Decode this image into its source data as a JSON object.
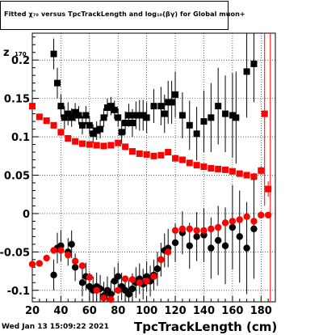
{
  "title": "Fitted  χ₇₀  versus TpcTrackLength and log₁₀(βγ) for Global muon+",
  "datestamp": "Wed Jan 13 15:09:22 2021",
  "colors": {
    "black_series": "#000000",
    "red_series": "#ff0000",
    "grid": "#000000",
    "frame": "#000000"
  },
  "chart_data": {
    "type": "scatter",
    "title": "Fitted  χ₇₀  versus TpcTrackLength and log₁₀(βγ) for Global muon+",
    "xlabel": "TpcTrackLength (cm)",
    "ylabel": "z",
    "ylabel_sub": "170",
    "xlim": [
      20,
      190
    ],
    "ylim": [
      -0.115,
      0.235
    ],
    "x_ticks": [
      20,
      40,
      60,
      80,
      100,
      120,
      140,
      160,
      180
    ],
    "y_ticks": [
      -0.1,
      -0.05,
      0,
      0.05,
      0.1,
      0.15,
      0.2
    ],
    "y_tick_labels": [
      "-0.1",
      "-0.05",
      "0",
      "0.05",
      "0.1",
      "0.15",
      "0.2"
    ],
    "grid": true,
    "series": [
      {
        "color": "#000000",
        "marker": "square",
        "points": [
          {
            "x": 35,
            "y": 0.208,
            "err": 0.02
          },
          {
            "x": 37.5,
            "y": 0.17,
            "err": 0.02
          },
          {
            "x": 40,
            "y": 0.14,
            "err": 0.015
          },
          {
            "x": 42.5,
            "y": 0.125,
            "err": 0.015
          },
          {
            "x": 45,
            "y": 0.13,
            "err": 0.015
          },
          {
            "x": 47.5,
            "y": 0.125,
            "err": 0.012
          },
          {
            "x": 50,
            "y": 0.132,
            "err": 0.012
          },
          {
            "x": 52.5,
            "y": 0.128,
            "err": 0.012
          },
          {
            "x": 55,
            "y": 0.115,
            "err": 0.012
          },
          {
            "x": 57.5,
            "y": 0.128,
            "err": 0.012
          },
          {
            "x": 60,
            "y": 0.115,
            "err": 0.012
          },
          {
            "x": 62.5,
            "y": 0.104,
            "err": 0.012
          },
          {
            "x": 65,
            "y": 0.108,
            "err": 0.012
          },
          {
            "x": 67.5,
            "y": 0.11,
            "err": 0.012
          },
          {
            "x": 70,
            "y": 0.125,
            "err": 0.012
          },
          {
            "x": 72.5,
            "y": 0.138,
            "err": 0.012
          },
          {
            "x": 75,
            "y": 0.14,
            "err": 0.012
          },
          {
            "x": 77.5,
            "y": 0.135,
            "err": 0.012
          },
          {
            "x": 80,
            "y": 0.125,
            "err": 0.012
          },
          {
            "x": 82.5,
            "y": 0.106,
            "err": 0.015
          },
          {
            "x": 85,
            "y": 0.118,
            "err": 0.015
          },
          {
            "x": 87.5,
            "y": 0.128,
            "err": 0.015
          },
          {
            "x": 90,
            "y": 0.118,
            "err": 0.018
          },
          {
            "x": 92.5,
            "y": 0.128,
            "err": 0.018
          },
          {
            "x": 95,
            "y": 0.128,
            "err": 0.02
          },
          {
            "x": 97.5,
            "y": 0.128,
            "err": 0.02
          },
          {
            "x": 100,
            "y": 0.125,
            "err": 0.02
          },
          {
            "x": 105,
            "y": 0.14,
            "err": 0.022
          },
          {
            "x": 110,
            "y": 0.14,
            "err": 0.025
          },
          {
            "x": 112.5,
            "y": 0.13,
            "err": 0.025
          },
          {
            "x": 115,
            "y": 0.145,
            "err": 0.028
          },
          {
            "x": 117.5,
            "y": 0.145,
            "err": 0.028
          },
          {
            "x": 120,
            "y": 0.155,
            "err": 0.03
          },
          {
            "x": 125,
            "y": 0.128,
            "err": 0.03
          },
          {
            "x": 130,
            "y": 0.115,
            "err": 0.032
          },
          {
            "x": 135,
            "y": 0.104,
            "err": 0.035
          },
          {
            "x": 140,
            "y": 0.12,
            "err": 0.04
          },
          {
            "x": 145,
            "y": 0.125,
            "err": 0.045
          },
          {
            "x": 150,
            "y": 0.14,
            "err": 0.05
          },
          {
            "x": 155,
            "y": 0.13,
            "err": 0.05
          },
          {
            "x": 160,
            "y": 0.128,
            "err": 0.055
          },
          {
            "x": 162.5,
            "y": 0.125,
            "err": 0.06
          },
          {
            "x": 170,
            "y": 0.185,
            "err": 0.06
          },
          {
            "x": 175,
            "y": 0.195,
            "err": 0.05
          }
        ]
      },
      {
        "color": "#ff0000",
        "marker": "square",
        "points": [
          {
            "x": 20,
            "y": 0.14,
            "err": 0.004
          },
          {
            "x": 25,
            "y": 0.126,
            "err": 0.004
          },
          {
            "x": 30,
            "y": 0.121,
            "err": 0.004
          },
          {
            "x": 35,
            "y": 0.115,
            "err": 0.004
          },
          {
            "x": 40,
            "y": 0.106,
            "err": 0.003
          },
          {
            "x": 45,
            "y": 0.098,
            "err": 0.003
          },
          {
            "x": 50,
            "y": 0.094,
            "err": 0.003
          },
          {
            "x": 55,
            "y": 0.091,
            "err": 0.003
          },
          {
            "x": 60,
            "y": 0.09,
            "err": 0.003
          },
          {
            "x": 65,
            "y": 0.089,
            "err": 0.003
          },
          {
            "x": 70,
            "y": 0.088,
            "err": 0.003
          },
          {
            "x": 75,
            "y": 0.089,
            "err": 0.003
          },
          {
            "x": 80,
            "y": 0.092,
            "err": 0.003
          },
          {
            "x": 85,
            "y": 0.087,
            "err": 0.003
          },
          {
            "x": 90,
            "y": 0.081,
            "err": 0.003
          },
          {
            "x": 95,
            "y": 0.078,
            "err": 0.003
          },
          {
            "x": 100,
            "y": 0.077,
            "err": 0.003
          },
          {
            "x": 105,
            "y": 0.075,
            "err": 0.003
          },
          {
            "x": 110,
            "y": 0.076,
            "err": 0.003
          },
          {
            "x": 115,
            "y": 0.08,
            "err": 0.003
          },
          {
            "x": 120,
            "y": 0.072,
            "err": 0.003
          },
          {
            "x": 125,
            "y": 0.07,
            "err": 0.003
          },
          {
            "x": 130,
            "y": 0.066,
            "err": 0.003
          },
          {
            "x": 135,
            "y": 0.063,
            "err": 0.003
          },
          {
            "x": 140,
            "y": 0.061,
            "err": 0.003
          },
          {
            "x": 145,
            "y": 0.059,
            "err": 0.003
          },
          {
            "x": 150,
            "y": 0.058,
            "err": 0.003
          },
          {
            "x": 155,
            "y": 0.057,
            "err": 0.003
          },
          {
            "x": 160,
            "y": 0.055,
            "err": 0.003
          },
          {
            "x": 165,
            "y": 0.052,
            "err": 0.004
          },
          {
            "x": 170,
            "y": 0.05,
            "err": 0.004
          },
          {
            "x": 175,
            "y": 0.048,
            "err": 0.005
          },
          {
            "x": 180,
            "y": 0.056,
            "err": 0.006
          },
          {
            "x": 182.5,
            "y": 0.13,
            "err": 0.12
          },
          {
            "x": 185,
            "y": 0.032,
            "err": 0.01
          }
        ]
      },
      {
        "color": "#000000",
        "marker": "circle",
        "points": [
          {
            "x": 35,
            "y": -0.08,
            "err": 0.02
          },
          {
            "x": 37.5,
            "y": -0.045,
            "err": 0.02
          },
          {
            "x": 40,
            "y": -0.042,
            "err": 0.02
          },
          {
            "x": 45,
            "y": -0.05,
            "err": 0.018
          },
          {
            "x": 47.5,
            "y": -0.04,
            "err": 0.018
          },
          {
            "x": 50,
            "y": -0.07,
            "err": 0.018
          },
          {
            "x": 55,
            "y": -0.09,
            "err": 0.018
          },
          {
            "x": 57.5,
            "y": -0.082,
            "err": 0.018
          },
          {
            "x": 60,
            "y": -0.095,
            "err": 0.018
          },
          {
            "x": 62.5,
            "y": -0.1,
            "err": 0.018
          },
          {
            "x": 65,
            "y": -0.095,
            "err": 0.018
          },
          {
            "x": 67.5,
            "y": -0.098,
            "err": 0.018
          },
          {
            "x": 70,
            "y": -0.107,
            "err": 0.018
          },
          {
            "x": 72.5,
            "y": -0.1,
            "err": 0.018
          },
          {
            "x": 75,
            "y": -0.105,
            "err": 0.018
          },
          {
            "x": 77.5,
            "y": -0.088,
            "err": 0.018
          },
          {
            "x": 80,
            "y": -0.082,
            "err": 0.018
          },
          {
            "x": 82.5,
            "y": -0.095,
            "err": 0.018
          },
          {
            "x": 85,
            "y": -0.1,
            "err": 0.018
          },
          {
            "x": 87.5,
            "y": -0.105,
            "err": 0.018
          },
          {
            "x": 90,
            "y": -0.098,
            "err": 0.02
          },
          {
            "x": 92.5,
            "y": -0.09,
            "err": 0.02
          },
          {
            "x": 95,
            "y": -0.085,
            "err": 0.02
          },
          {
            "x": 97.5,
            "y": -0.092,
            "err": 0.02
          },
          {
            "x": 100,
            "y": -0.082,
            "err": 0.02
          },
          {
            "x": 102.5,
            "y": -0.088,
            "err": 0.02
          },
          {
            "x": 105,
            "y": -0.08,
            "err": 0.02
          },
          {
            "x": 107.5,
            "y": -0.072,
            "err": 0.022
          },
          {
            "x": 110,
            "y": -0.06,
            "err": 0.022
          },
          {
            "x": 112.5,
            "y": -0.048,
            "err": 0.022
          },
          {
            "x": 115,
            "y": -0.045,
            "err": 0.025
          },
          {
            "x": 120,
            "y": -0.038,
            "err": 0.025
          },
          {
            "x": 125,
            "y": -0.025,
            "err": 0.028
          },
          {
            "x": 130,
            "y": -0.042,
            "err": 0.03
          },
          {
            "x": 135,
            "y": -0.03,
            "err": 0.032
          },
          {
            "x": 140,
            "y": -0.028,
            "err": 0.035
          },
          {
            "x": 145,
            "y": -0.045,
            "err": 0.04
          },
          {
            "x": 150,
            "y": -0.035,
            "err": 0.045
          },
          {
            "x": 155,
            "y": -0.042,
            "err": 0.05
          },
          {
            "x": 160,
            "y": -0.018,
            "err": 0.055
          },
          {
            "x": 165,
            "y": -0.03,
            "err": 0.06
          },
          {
            "x": 170,
            "y": -0.045,
            "err": 0.06
          },
          {
            "x": 175,
            "y": -0.02,
            "err": 0.065
          }
        ]
      },
      {
        "color": "#ff0000",
        "marker": "circle",
        "points": [
          {
            "x": 20,
            "y": -0.066,
            "err": 0.004
          },
          {
            "x": 25,
            "y": -0.065,
            "err": 0.004
          },
          {
            "x": 30,
            "y": -0.058,
            "err": 0.004
          },
          {
            "x": 35,
            "y": -0.048,
            "err": 0.004
          },
          {
            "x": 40,
            "y": -0.048,
            "err": 0.004
          },
          {
            "x": 45,
            "y": -0.054,
            "err": 0.004
          },
          {
            "x": 50,
            "y": -0.062,
            "err": 0.004
          },
          {
            "x": 55,
            "y": -0.068,
            "err": 0.004
          },
          {
            "x": 60,
            "y": -0.083,
            "err": 0.004
          },
          {
            "x": 65,
            "y": -0.1,
            "err": 0.004
          },
          {
            "x": 70,
            "y": -0.11,
            "err": 0.004
          },
          {
            "x": 75,
            "y": -0.112,
            "err": 0.004
          },
          {
            "x": 80,
            "y": -0.1,
            "err": 0.004
          },
          {
            "x": 85,
            "y": -0.085,
            "err": 0.004
          },
          {
            "x": 90,
            "y": -0.086,
            "err": 0.004
          },
          {
            "x": 95,
            "y": -0.09,
            "err": 0.004
          },
          {
            "x": 100,
            "y": -0.088,
            "err": 0.004
          },
          {
            "x": 105,
            "y": -0.082,
            "err": 0.004
          },
          {
            "x": 110,
            "y": -0.06,
            "err": 0.004
          },
          {
            "x": 115,
            "y": -0.05,
            "err": 0.004
          },
          {
            "x": 120,
            "y": -0.022,
            "err": 0.004
          },
          {
            "x": 125,
            "y": -0.02,
            "err": 0.004
          },
          {
            "x": 130,
            "y": -0.02,
            "err": 0.004
          },
          {
            "x": 135,
            "y": -0.022,
            "err": 0.004
          },
          {
            "x": 140,
            "y": -0.022,
            "err": 0.004
          },
          {
            "x": 145,
            "y": -0.02,
            "err": 0.004
          },
          {
            "x": 150,
            "y": -0.018,
            "err": 0.004
          },
          {
            "x": 155,
            "y": -0.012,
            "err": 0.004
          },
          {
            "x": 160,
            "y": -0.01,
            "err": 0.004
          },
          {
            "x": 165,
            "y": -0.008,
            "err": 0.004
          },
          {
            "x": 170,
            "y": -0.004,
            "err": 0.004
          },
          {
            "x": 175,
            "y": -0.01,
            "err": 0.004
          },
          {
            "x": 180,
            "y": -0.002,
            "err": 0.004
          },
          {
            "x": 185,
            "y": -0.002,
            "err": 0.004
          }
        ]
      }
    ],
    "vertical_line": {
      "x": 186.5,
      "color": "#ff0000"
    }
  }
}
